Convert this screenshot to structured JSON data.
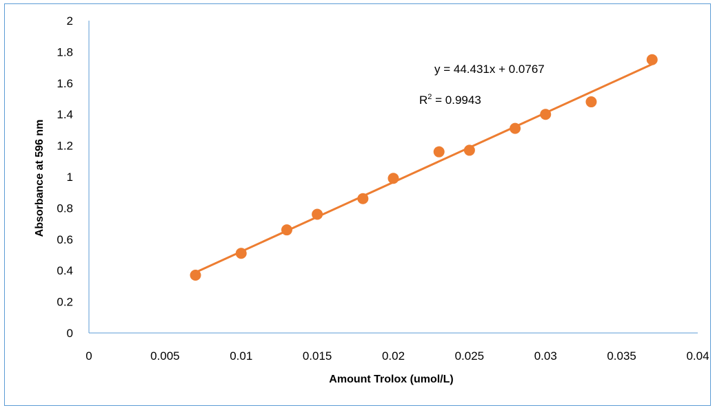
{
  "chart_data": {
    "type": "scatter",
    "title": "",
    "xlabel": "Amount Trolox (umol/L)",
    "ylabel": "Absorbance at 596  nm",
    "xlim": [
      0,
      0.04
    ],
    "ylim": [
      0,
      2
    ],
    "x_ticks": [
      "0",
      "0.005",
      "0.01",
      "0.015",
      "0.02",
      "0.025",
      "0.03",
      "0.035",
      "0.04"
    ],
    "y_ticks": [
      "0",
      "0.2",
      "0.4",
      "0.6",
      "0.8",
      "1",
      "1.2",
      "1.4",
      "1.6",
      "1.8",
      "2"
    ],
    "grid": false,
    "legend": "none",
    "series": [
      {
        "x": [
          0.007,
          0.01,
          0.013,
          0.015,
          0.018,
          0.02,
          0.023,
          0.025,
          0.028,
          0.03,
          0.033,
          0.037
        ],
        "y": [
          0.37,
          0.51,
          0.66,
          0.76,
          0.86,
          0.99,
          1.16,
          1.17,
          1.31,
          1.4,
          1.48,
          1.75
        ]
      }
    ],
    "trendline": {
      "type": "linear",
      "slope": 44.431,
      "intercept": 0.0767,
      "x_range": [
        0.007,
        0.037
      ]
    },
    "annotations": {
      "equation": "y = 44.431x + 0.0767",
      "r2_label": "R",
      "r2_sup": "2",
      "r2_value": " = 0.9943"
    },
    "colors": {
      "marker": "#ed7d31",
      "trendline": "#ed7d31",
      "axis": "#5b9bd5",
      "frame": "#5b9bd5"
    }
  }
}
